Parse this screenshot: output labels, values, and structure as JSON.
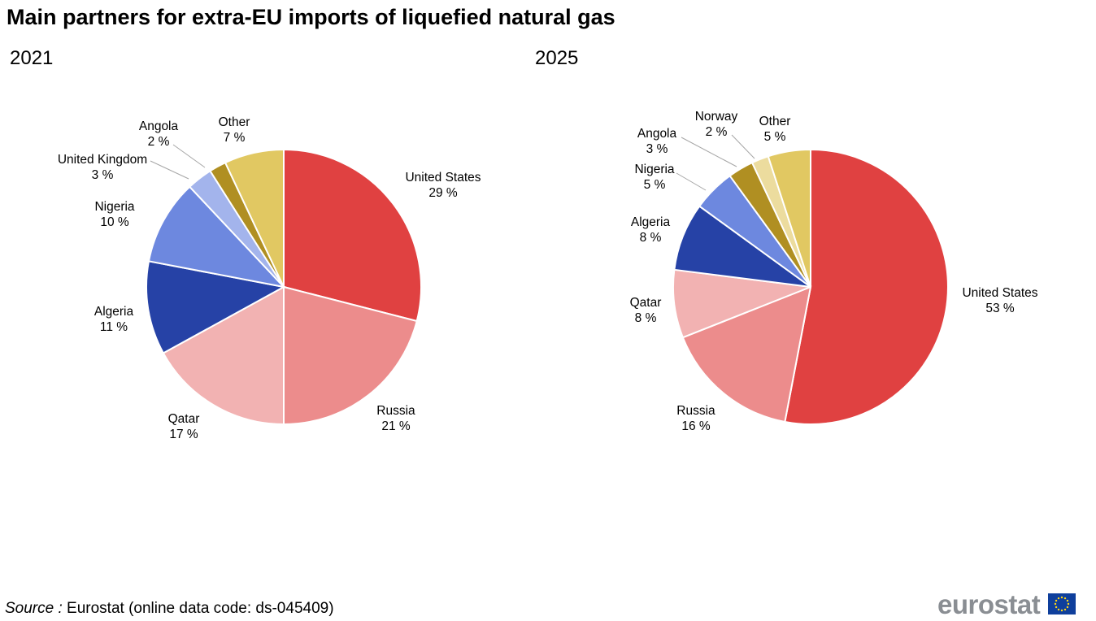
{
  "title": "Main partners for extra-EU imports of liquefied natural gas",
  "source": {
    "label": "Source :",
    "text": "Eurostat (online data code: ds-045409)"
  },
  "logo": {
    "text": "eurostat",
    "flag_icon": "eu-flag-icon"
  },
  "colors": {
    "United States": "#e04141",
    "Russia": "#ec8c8c",
    "Qatar": "#f2b2b2",
    "Algeria": "#2642a6",
    "Nigeria": "#6d88df",
    "United Kingdom": "#a3b4ec",
    "Angola": "#b08f22",
    "Norway": "#ecdc9e",
    "Other": "#e1c862"
  },
  "chart_data": [
    {
      "type": "pie",
      "title": "2021",
      "unit": "%",
      "slices": [
        {
          "label": "United States",
          "value": 29,
          "text": "29 %"
        },
        {
          "label": "Russia",
          "value": 21,
          "text": "21 %"
        },
        {
          "label": "Qatar",
          "value": 17,
          "text": "17 %"
        },
        {
          "label": "Algeria",
          "value": 11,
          "text": "11 %"
        },
        {
          "label": "Nigeria",
          "value": 10,
          "text": "10 %"
        },
        {
          "label": "United Kingdom",
          "value": 3,
          "text": "3 %"
        },
        {
          "label": "Angola",
          "value": 2,
          "text": "2 %"
        },
        {
          "label": "Other",
          "value": 7,
          "text": "7 %"
        }
      ]
    },
    {
      "type": "pie",
      "title": "2025",
      "unit": "%",
      "slices": [
        {
          "label": "United States",
          "value": 53,
          "text": "53 %"
        },
        {
          "label": "Russia",
          "value": 16,
          "text": "16 %"
        },
        {
          "label": "Qatar",
          "value": 8,
          "text": "8 %"
        },
        {
          "label": "Algeria",
          "value": 8,
          "text": "8 %"
        },
        {
          "label": "Nigeria",
          "value": 5,
          "text": "5 %"
        },
        {
          "label": "Angola",
          "value": 3,
          "text": "3 %"
        },
        {
          "label": "Norway",
          "value": 2,
          "text": "2 %"
        },
        {
          "label": "Other",
          "value": 5,
          "text": "5 %"
        }
      ]
    }
  ]
}
